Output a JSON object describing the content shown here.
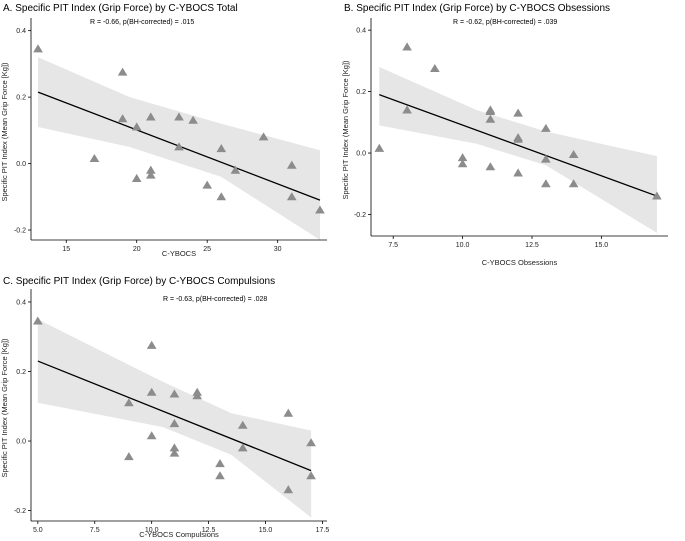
{
  "chart_data": [
    {
      "type": "scatter",
      "title": "A. Specific PIT Index (Grip Force) by C-YBOCS Total",
      "annotation": "R = -0.66, p(BH-corrected) = .015",
      "xlabel": "C-YBOCS",
      "ylabel": "Specific PIT Index (Mean Grip Force [Kg])",
      "xlim": [
        12.5,
        33.5
      ],
      "ylim": [
        -0.23,
        0.42
      ],
      "xticks": [
        15,
        20,
        25,
        30
      ],
      "xtick_labels": [
        "15",
        "20",
        "25",
        "30"
      ],
      "yticks": [
        -0.2,
        0,
        0.2,
        0.4
      ],
      "ytick_labels": [
        "-0.2",
        "0.0",
        "0.2",
        "0.4"
      ],
      "fit": {
        "x": [
          13,
          33
        ],
        "y": [
          0.215,
          -0.11
        ]
      },
      "ci_upper": [
        0.32,
        0.2,
        0.12,
        0.04
      ],
      "ci_lower": [
        0.11,
        0.05,
        -0.04,
        -0.23
      ],
      "ci_x": [
        13,
        19.5,
        26,
        33
      ],
      "x": [
        13,
        17,
        19,
        19,
        20,
        20,
        21,
        21,
        21,
        23,
        23,
        24,
        25,
        26,
        26,
        27,
        29,
        31,
        31,
        33
      ],
      "y": [
        0.345,
        0.015,
        0.275,
        0.135,
        0.11,
        -0.045,
        0.14,
        -0.02,
        -0.035,
        0.14,
        0.05,
        0.13,
        -0.065,
        0.045,
        -0.1,
        -0.02,
        0.08,
        -0.005,
        -0.1,
        -0.14
      ]
    },
    {
      "type": "scatter",
      "title": "B. Specific PIT Index (Grip Force) by C-YBOCS Obsessions",
      "annotation": "R = -0.62, p(BH-corrected) = .039",
      "xlabel": "C-YBOCS Obsessions",
      "ylabel": "Specific PIT Index (Mean Grip Force [Kg])",
      "xlim": [
        6.7,
        17.4
      ],
      "ylim": [
        -0.27,
        0.42
      ],
      "xticks": [
        7.5,
        10,
        12.5,
        15
      ],
      "xtick_labels": [
        "7.5",
        "10.0",
        "12.5",
        "15.0"
      ],
      "yticks": [
        -0.2,
        0,
        0.2,
        0.4
      ],
      "ytick_labels": [
        "-0.2",
        "0.0",
        "0.2",
        "0.4"
      ],
      "fit": {
        "x": [
          7,
          17
        ],
        "y": [
          0.19,
          -0.14
        ]
      },
      "ci_upper": [
        0.28,
        0.14,
        0.07,
        -0.01
      ],
      "ci_lower": [
        0.09,
        0.03,
        -0.04,
        -0.26
      ],
      "ci_x": [
        7,
        10.5,
        13,
        17
      ],
      "x": [
        7,
        8,
        8,
        9,
        10,
        10,
        11,
        11,
        11,
        11,
        12,
        12,
        12,
        12,
        13,
        13,
        13,
        14,
        14,
        17
      ],
      "y": [
        0.015,
        0.345,
        0.14,
        0.275,
        -0.015,
        -0.035,
        0.14,
        0.135,
        0.11,
        -0.045,
        0.13,
        0.05,
        0.045,
        -0.065,
        0.08,
        -0.02,
        -0.1,
        -0.005,
        -0.1,
        -0.14
      ]
    },
    {
      "type": "scatter",
      "title": "C. Specific PIT Index (Grip Force) by C-YBOCS Compulsions",
      "annotation": "R = -0.63, p(BH-corrected) = .028",
      "xlabel": "C-YBOCS Compulsions",
      "ylabel": "Specific PIT Index (Mean Grip Force [Kg])",
      "xlim": [
        4.7,
        17.7
      ],
      "ylim": [
        -0.23,
        0.42
      ],
      "xticks": [
        5,
        7.5,
        10,
        12.5,
        15,
        17.5
      ],
      "xtick_labels": [
        "5.0",
        "7.5",
        "10.0",
        "12.5",
        "15.0",
        "17.5"
      ],
      "yticks": [
        -0.2,
        0,
        0.2,
        0.4
      ],
      "ytick_labels": [
        "-0.2",
        "0.0",
        "0.2",
        "0.4"
      ],
      "fit": {
        "x": [
          5,
          17
        ],
        "y": [
          0.23,
          -0.085
        ]
      },
      "ci_upper": [
        0.35,
        0.17,
        0.08,
        0.03
      ],
      "ci_lower": [
        0.11,
        0.04,
        -0.04,
        -0.22
      ],
      "ci_x": [
        5,
        10.5,
        13.5,
        17
      ],
      "x": [
        5,
        9,
        9,
        10,
        10,
        10,
        11,
        11,
        11,
        11,
        12,
        12,
        13,
        13,
        14,
        14,
        16,
        16,
        17,
        17
      ],
      "y": [
        0.345,
        0.11,
        -0.045,
        0.275,
        0.14,
        0.015,
        0.135,
        0.05,
        -0.02,
        -0.035,
        0.14,
        0.13,
        -0.065,
        -0.1,
        0.045,
        -0.02,
        0.08,
        -0.14,
        -0.005,
        -0.1
      ]
    }
  ]
}
